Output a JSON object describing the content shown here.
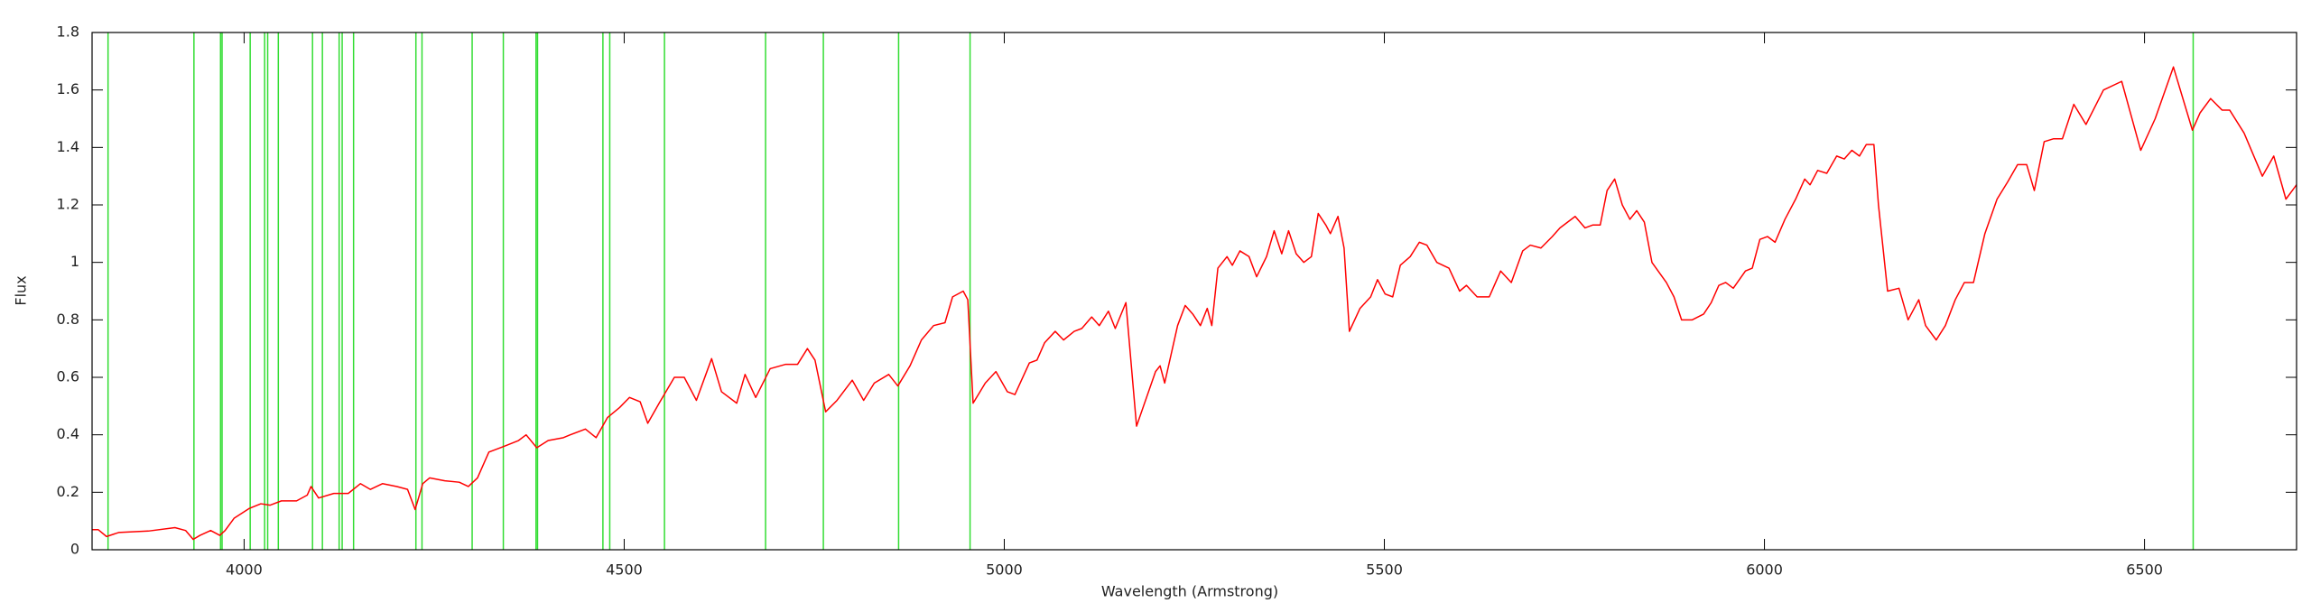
{
  "chart_data": {
    "type": "line",
    "x_label": "Wavelength (Armstrong)",
    "y_label": "Flux",
    "xlim": [
      3800,
      6700
    ],
    "xticks": [
      4000,
      4500,
      5000,
      5500,
      6000,
      6500
    ],
    "ylim": [
      0,
      1.8
    ],
    "yticks": [
      0,
      0.2,
      0.4,
      0.6,
      0.8,
      1,
      1.2,
      1.4,
      1.6,
      1.8
    ],
    "color": "#ff0000",
    "x": [
      3800,
      3808,
      3819,
      3835,
      3874,
      3909,
      3923,
      3933,
      3942,
      3956,
      3968,
      3975,
      3987,
      4007,
      4022,
      4034,
      4049,
      4069,
      4083,
      4088,
      4098,
      4118,
      4137,
      4153,
      4166,
      4182,
      4201,
      4215,
      4225,
      4235,
      4244,
      4264,
      4283,
      4295,
      4307,
      4322,
      4342,
      4361,
      4371,
      4385,
      4400,
      4420,
      4429,
      4449,
      4463,
      4478,
      4494,
      4507,
      4521,
      4531,
      4546,
      4566,
      4579,
      4595,
      4615,
      4628,
      4648,
      4659,
      4673,
      4692,
      4712,
      4728,
      4741,
      4751,
      4765,
      4780,
      4800,
      4815,
      4829,
      4848,
      4860,
      4876,
      4891,
      4907,
      4922,
      4932,
      4946,
      4952,
      4959,
      4975,
      4989,
      5004,
      5014,
      5033,
      5043,
      5053,
      5067,
      5078,
      5092,
      5102,
      5115,
      5125,
      5137,
      5146,
      5160,
      5174,
      5199,
      5205,
      5211,
      5228,
      5238,
      5248,
      5258,
      5267,
      5273,
      5281,
      5293,
      5300,
      5310,
      5322,
      5332,
      5345,
      5355,
      5365,
      5374,
      5384,
      5394,
      5404,
      5413,
      5423,
      5429,
      5439,
      5447,
      5454,
      5468,
      5482,
      5491,
      5501,
      5511,
      5521,
      5534,
      5546,
      5556,
      5569,
      5585,
      5599,
      5608,
      5622,
      5638,
      5653,
      5667,
      5682,
      5692,
      5706,
      5721,
      5731,
      5741,
      5751,
      5764,
      5774,
      5784,
      5793,
      5803,
      5813,
      5823,
      5832,
      5842,
      5852,
      5871,
      5881,
      5891,
      5905,
      5920,
      5930,
      5940,
      5949,
      5959,
      5975,
      5984,
      5994,
      6004,
      6014,
      6027,
      6041,
      6053,
      6060,
      6070,
      6082,
      6095,
      6105,
      6115,
      6125,
      6134,
      6144,
      6150,
      6162,
      6177,
      6189,
      6203,
      6212,
      6226,
      6238,
      6251,
      6263,
      6275,
      6290,
      6306,
      6320,
      6333,
      6345,
      6355,
      6368,
      6380,
      6392,
      6407,
      6423,
      6446,
      6470,
      6495,
      6514,
      6538,
      6563,
      6573,
      6587,
      6602,
      6612,
      6631,
      6655,
      6670,
      6686,
      6700
    ],
    "values": [
      0.07,
      0.07,
      0.046,
      0.06,
      0.065,
      0.077,
      0.067,
      0.036,
      0.05,
      0.067,
      0.05,
      0.067,
      0.11,
      0.144,
      0.16,
      0.155,
      0.17,
      0.17,
      0.19,
      0.22,
      0.18,
      0.196,
      0.196,
      0.23,
      0.21,
      0.23,
      0.22,
      0.21,
      0.14,
      0.23,
      0.25,
      0.24,
      0.235,
      0.22,
      0.25,
      0.34,
      0.36,
      0.38,
      0.4,
      0.355,
      0.38,
      0.39,
      0.4,
      0.42,
      0.39,
      0.46,
      0.495,
      0.53,
      0.515,
      0.44,
      0.51,
      0.6,
      0.6,
      0.52,
      0.665,
      0.55,
      0.51,
      0.61,
      0.53,
      0.63,
      0.645,
      0.645,
      0.7,
      0.66,
      0.48,
      0.52,
      0.59,
      0.52,
      0.58,
      0.61,
      0.57,
      0.64,
      0.73,
      0.78,
      0.79,
      0.88,
      0.9,
      0.87,
      0.51,
      0.58,
      0.62,
      0.55,
      0.54,
      0.65,
      0.66,
      0.72,
      0.76,
      0.73,
      0.76,
      0.77,
      0.81,
      0.78,
      0.83,
      0.77,
      0.86,
      0.43,
      0.62,
      0.64,
      0.58,
      0.78,
      0.85,
      0.82,
      0.78,
      0.84,
      0.78,
      0.98,
      1.02,
      0.99,
      1.04,
      1.02,
      0.95,
      1.02,
      1.11,
      1.03,
      1.11,
      1.03,
      1.0,
      1.02,
      1.17,
      1.13,
      1.1,
      1.16,
      1.05,
      0.76,
      0.84,
      0.88,
      0.94,
      0.89,
      0.88,
      0.99,
      1.02,
      1.07,
      1.06,
      1.0,
      0.98,
      0.9,
      0.92,
      0.88,
      0.88,
      0.97,
      0.93,
      1.04,
      1.06,
      1.05,
      1.09,
      1.12,
      1.14,
      1.16,
      1.12,
      1.13,
      1.13,
      1.25,
      1.29,
      1.2,
      1.15,
      1.18,
      1.14,
      1.0,
      0.93,
      0.88,
      0.8,
      0.8,
      0.82,
      0.86,
      0.92,
      0.93,
      0.91,
      0.97,
      0.98,
      1.08,
      1.09,
      1.07,
      1.15,
      1.22,
      1.29,
      1.27,
      1.32,
      1.31,
      1.37,
      1.36,
      1.39,
      1.37,
      1.41,
      1.41,
      1.2,
      0.9,
      0.91,
      0.8,
      0.87,
      0.78,
      0.73,
      0.78,
      0.87,
      0.93,
      0.93,
      1.1,
      1.22,
      1.28,
      1.34,
      1.34,
      1.25,
      1.42,
      1.43,
      1.43,
      1.55,
      1.48,
      1.6,
      1.63,
      1.39,
      1.5,
      1.68,
      1.46,
      1.52,
      1.57,
      1.53,
      1.53,
      1.45,
      1.3,
      1.37,
      1.22,
      1.27
    ],
    "markers": {
      "color": "#33dd33",
      "x": [
        3821,
        3934,
        3969,
        3971,
        4008,
        4027,
        4031,
        4045,
        4090,
        4103,
        4125,
        4129,
        4144,
        4226,
        4234,
        4300,
        4341,
        4384,
        4386,
        4472,
        4481,
        4553,
        4686,
        4762,
        4861,
        4955,
        6564
      ]
    }
  }
}
